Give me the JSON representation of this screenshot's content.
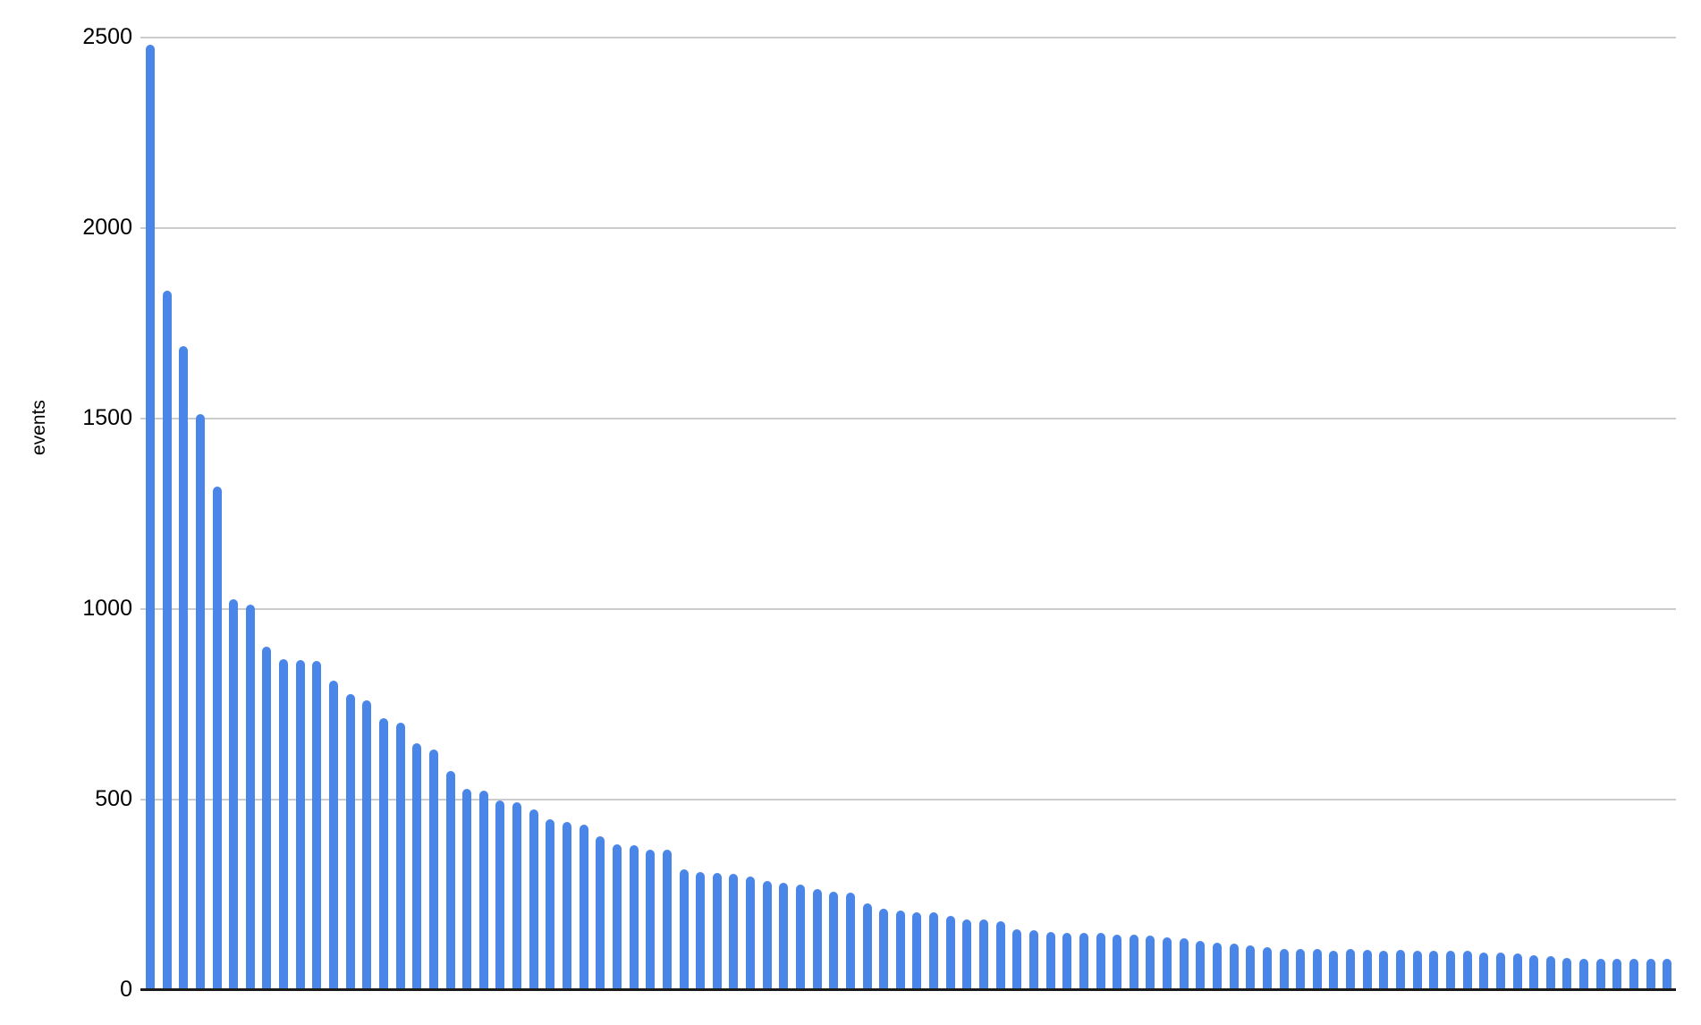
{
  "chart_data": {
    "type": "bar",
    "title": "",
    "xlabel": "",
    "ylabel": "events",
    "ylim": [
      0,
      2500
    ],
    "yticks": [
      0,
      500,
      1000,
      1500,
      2000,
      2500
    ],
    "grid": "horizontal",
    "legend": "none",
    "x_tick_labels": "none",
    "bar_color": "#4a86e8",
    "gridline_color": "#cccccc",
    "axis_line_color": "#1b1b1b",
    "text_color": "#000000",
    "values": [
      2480,
      1835,
      1690,
      1510,
      1320,
      1025,
      1010,
      900,
      868,
      865,
      863,
      812,
      775,
      760,
      713,
      700,
      646,
      630,
      574,
      528,
      523,
      496,
      492,
      472,
      447,
      440,
      433,
      403,
      382,
      380,
      368,
      367,
      315,
      308,
      307,
      303,
      296,
      285,
      281,
      277,
      265,
      257,
      255,
      227,
      212,
      208,
      203,
      202,
      193,
      185,
      185,
      180,
      159,
      157,
      152,
      150,
      150,
      148,
      144,
      145,
      141,
      137,
      136,
      128,
      124,
      122,
      116,
      112,
      108,
      108,
      106,
      103,
      107,
      105,
      103,
      105,
      103,
      102,
      101,
      101,
      98,
      97,
      94,
      90,
      87,
      83,
      81,
      80,
      82,
      82,
      81,
      80
    ]
  }
}
